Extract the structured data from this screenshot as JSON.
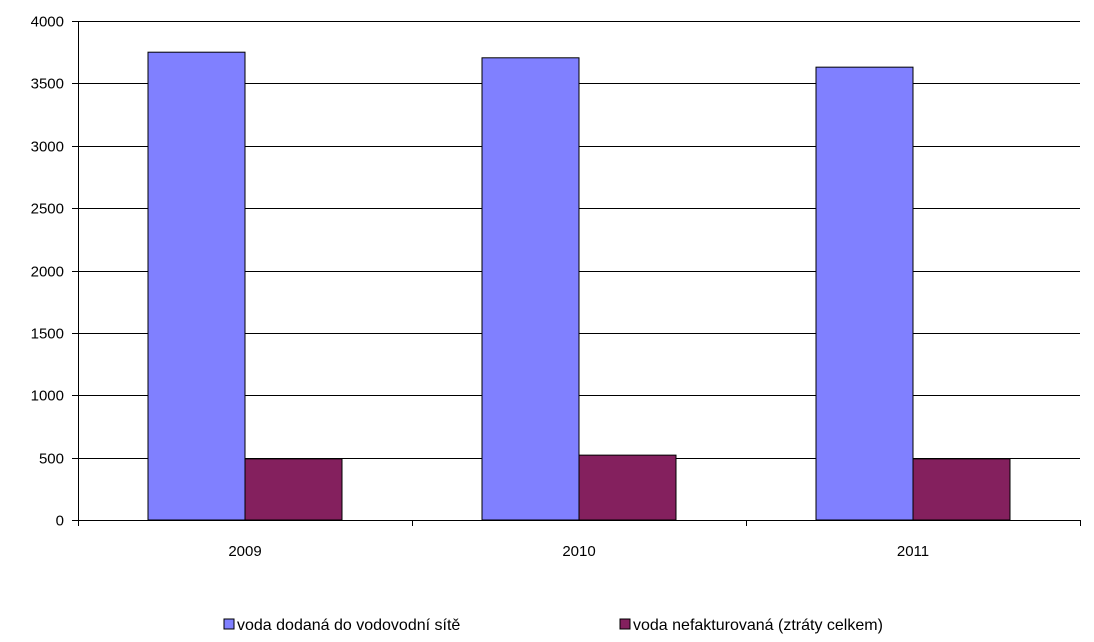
{
  "chart_data": {
    "type": "bar",
    "title": "",
    "xlabel": "",
    "ylabel": "",
    "categories": [
      "2009",
      "2010",
      "2011"
    ],
    "series": [
      {
        "name": "voda dodaná do vodovodní sítě",
        "color": "#8080ff",
        "values": [
          3750,
          3705,
          3630
        ]
      },
      {
        "name": "voda nefakturovaná (ztráty celkem)",
        "color": "#84205e",
        "values": [
          490,
          520,
          490
        ]
      }
    ],
    "ylim": [
      0,
      4000
    ],
    "yticks": [
      0,
      500,
      1000,
      1500,
      2000,
      2500,
      3000,
      3500,
      4000
    ],
    "grid": true,
    "legend_position": "bottom"
  }
}
